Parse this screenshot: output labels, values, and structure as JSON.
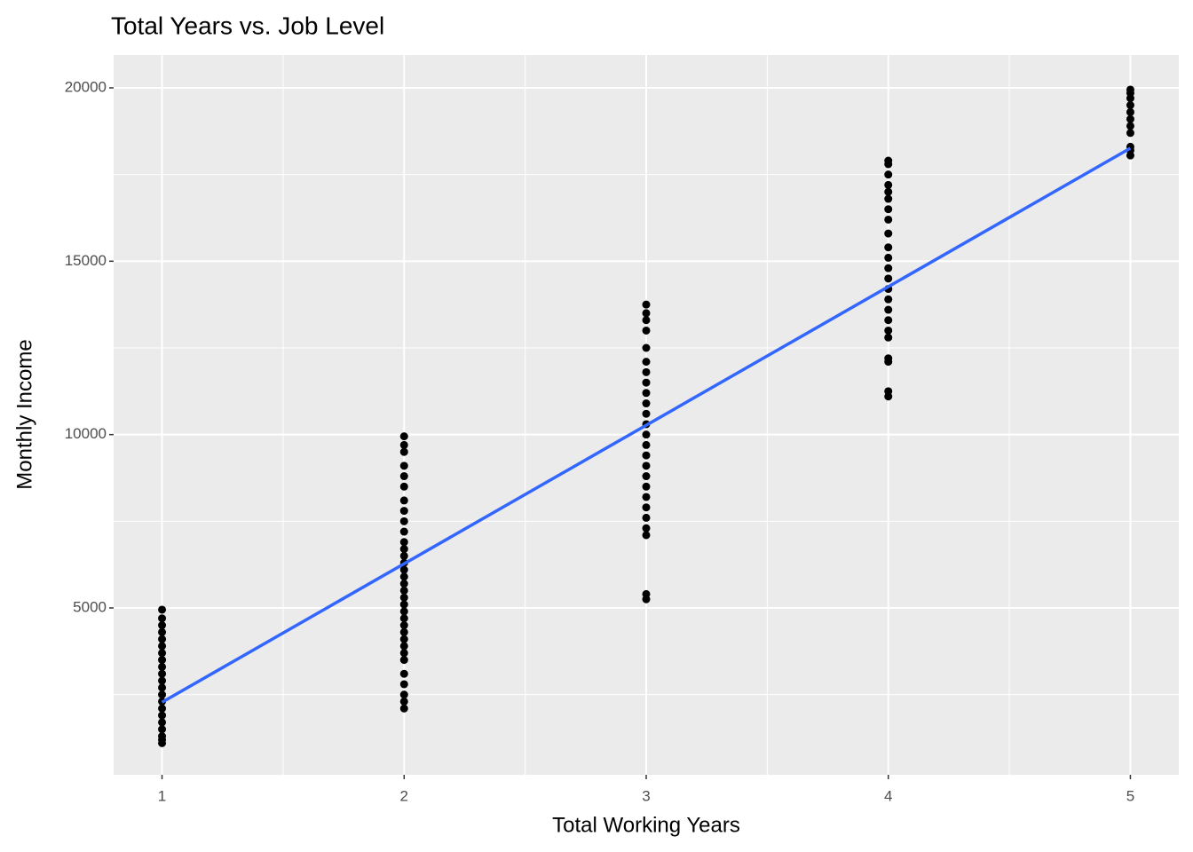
{
  "chart_data": {
    "type": "scatter",
    "title": "Total Years vs. Job Level",
    "x_label": "Total Working Years",
    "y_label": "Monthly Income",
    "xlim": [
      0.8,
      5.2
    ],
    "ylim": [
      188,
      20947
    ],
    "xticks": [
      1,
      2,
      3,
      4,
      5
    ],
    "yticks": [
      5000,
      10000,
      15000,
      20000
    ],
    "grid": true,
    "point_color": "#000000",
    "groups": [
      {
        "x": 1,
        "values": [
          1100,
          1200,
          1300,
          1500,
          1700,
          1900,
          2100,
          2300,
          2500,
          2700,
          2900,
          3100,
          3300,
          3500,
          3700,
          3900,
          4100,
          4300,
          4500,
          4700,
          4950
        ]
      },
      {
        "x": 2,
        "values": [
          2100,
          2300,
          2500,
          2800,
          3100,
          3500,
          3700,
          3900,
          4100,
          4300,
          4500,
          4700,
          4900,
          5100,
          5300,
          5500,
          5700,
          5900,
          6100,
          6300,
          6500,
          6700,
          6900,
          7200,
          7500,
          7800,
          8100,
          8500,
          8800,
          9100,
          9500,
          9700,
          9950
        ]
      },
      {
        "x": 3,
        "values": [
          5250,
          5400,
          7100,
          7300,
          7600,
          7900,
          8200,
          8500,
          8800,
          9100,
          9400,
          9700,
          10000,
          10300,
          10600,
          10900,
          11200,
          11500,
          11800,
          12100,
          12500,
          13000,
          13300,
          13500,
          13750
        ]
      },
      {
        "x": 4,
        "values": [
          11100,
          11250,
          12100,
          12200,
          12800,
          13000,
          13300,
          13600,
          13900,
          14200,
          14500,
          14800,
          15100,
          15400,
          15800,
          16200,
          16500,
          16800,
          17000,
          17200,
          17500,
          17800,
          17900
        ]
      },
      {
        "x": 5,
        "values": [
          18050,
          18200,
          18300,
          18700,
          18900,
          19100,
          19300,
          19500,
          19700,
          19850,
          19950
        ]
      }
    ],
    "trend": {
      "x": [
        1,
        5
      ],
      "values": [
        2280,
        18260
      ],
      "color": "#3366ff"
    }
  }
}
